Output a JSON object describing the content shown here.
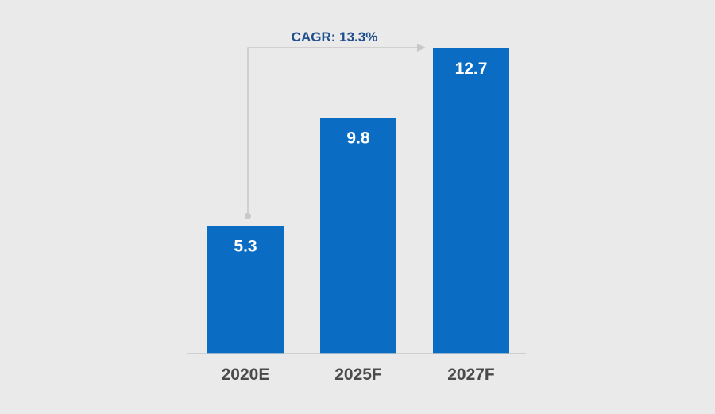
{
  "chart_data": {
    "type": "bar",
    "categories": [
      "2020E",
      "2025F",
      "2027F"
    ],
    "values": [
      5.3,
      9.8,
      12.7
    ],
    "data_labels": [
      "5.3",
      "9.8",
      "12.7"
    ],
    "annotation": {
      "label": "CAGR: 13.3%",
      "from_category": "2020E",
      "to_category": "2027F"
    },
    "title": "",
    "xlabel": "",
    "ylabel": "",
    "ylim": [
      0,
      12.7
    ],
    "grid": false,
    "legend": "none"
  },
  "colors": {
    "background": "#eaeaea",
    "bar": "#0a6cc2",
    "bar_label": "#ffffff",
    "category_label": "#4a4a4a",
    "annotation_text": "#1f4e8c",
    "connector": "#c8c8c8",
    "baseline": "#c8c8c8"
  }
}
